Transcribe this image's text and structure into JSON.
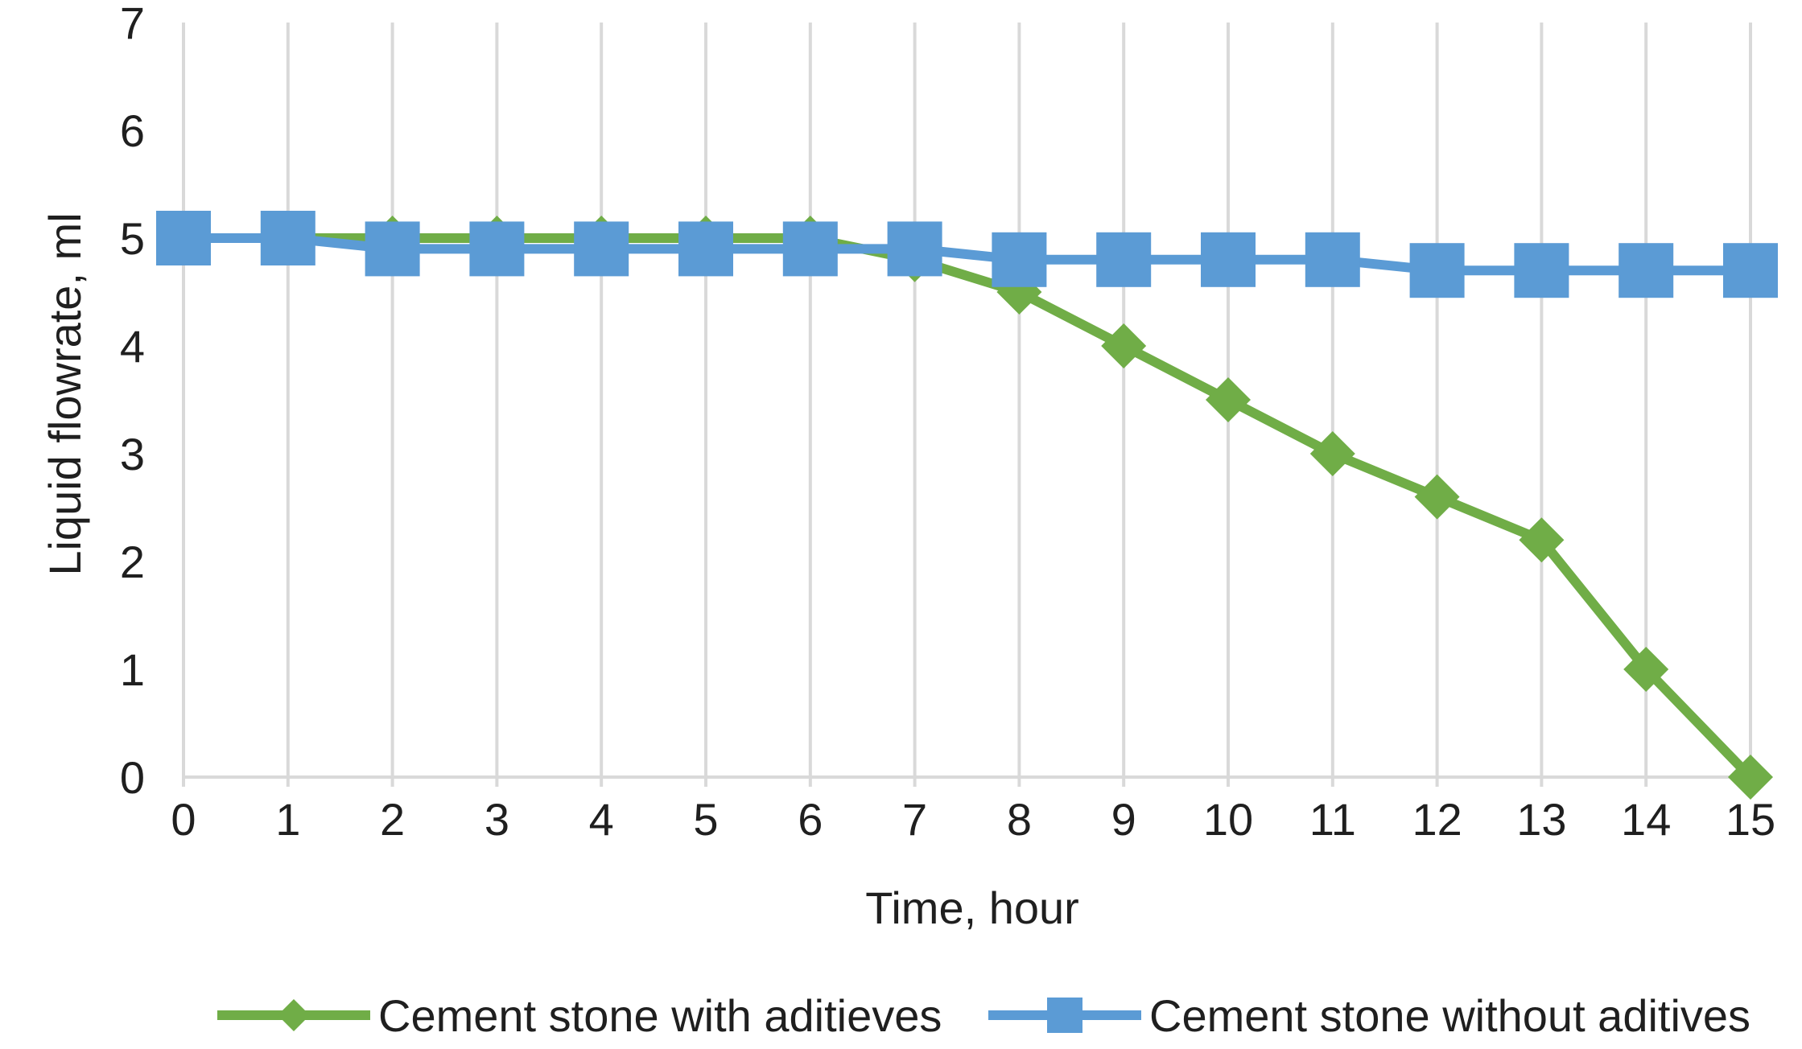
{
  "chart_data": {
    "type": "line",
    "title": "",
    "xlabel": "Time, hour",
    "ylabel": "Liquid flowrate, ml",
    "x": [
      0,
      1,
      2,
      3,
      4,
      5,
      6,
      7,
      8,
      9,
      10,
      11,
      12,
      13,
      14,
      15
    ],
    "xlim": [
      0,
      15
    ],
    "ylim": [
      0,
      7
    ],
    "yticks": [
      0,
      1,
      2,
      3,
      4,
      5,
      6,
      7
    ],
    "grid": "vertical",
    "legend_position": "bottom",
    "series": [
      {
        "name": "Cement stone with aditieves",
        "color": "#70ad47",
        "marker": "diamond",
        "values": [
          5,
          5,
          5,
          5,
          5,
          5,
          5,
          4.8,
          4.5,
          4,
          3.5,
          3,
          2.6,
          2.2,
          1,
          0
        ]
      },
      {
        "name": "Cement stone without aditives",
        "color": "#5b9bd5",
        "marker": "square",
        "values": [
          5,
          5,
          4.9,
          4.9,
          4.9,
          4.9,
          4.9,
          4.9,
          4.8,
          4.8,
          4.8,
          4.8,
          4.7,
          4.7,
          4.7,
          4.7
        ]
      }
    ]
  },
  "colors": {
    "gridline": "#d9d9d9",
    "axis": "#d9d9d9",
    "text": "#1f1f1f"
  }
}
